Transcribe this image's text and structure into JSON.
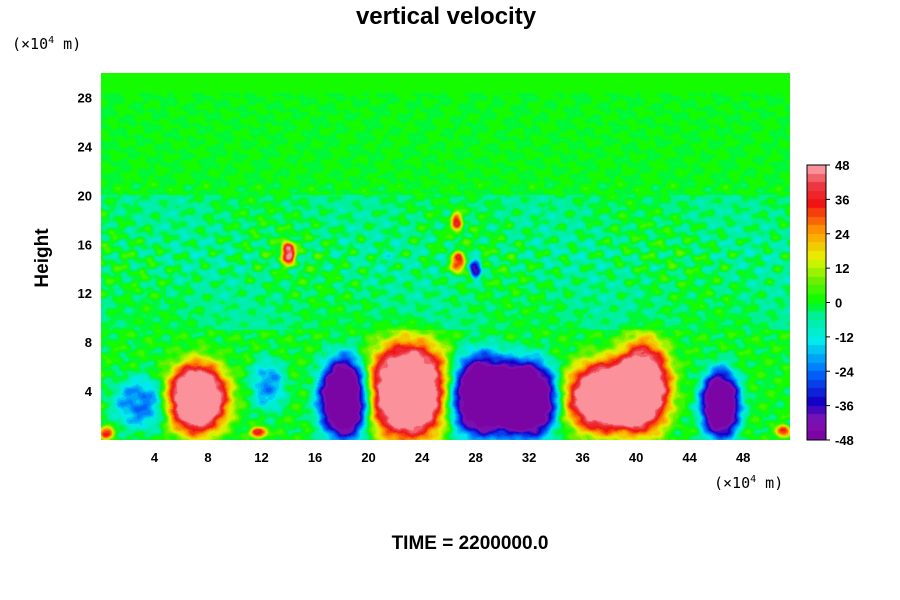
{
  "chart_data": {
    "type": "heatmap",
    "title": "vertical velocity",
    "ylabel": "Height",
    "x_unit": "(×10",
    "x_unit_exp": "4",
    "x_unit_end": " m)",
    "y_unit": "(×10",
    "y_unit_exp": "4",
    "y_unit_end": " m)",
    "xlim": [
      0,
      51.5
    ],
    "ylim": [
      0,
      30
    ],
    "x_ticks": [
      4,
      8,
      12,
      16,
      20,
      24,
      28,
      32,
      36,
      40,
      44,
      48
    ],
    "y_ticks": [
      4,
      8,
      12,
      16,
      20,
      24,
      28
    ],
    "colorbar": {
      "min": -48,
      "max": 48,
      "ticks": [
        48,
        36,
        24,
        12,
        0,
        -12,
        -24,
        -36,
        -48
      ]
    },
    "features": [
      {
        "name": "updraft",
        "x": 7.2,
        "y": 3.4,
        "rx": 2.2,
        "ry": 2.8,
        "value": 52
      },
      {
        "name": "updraft",
        "x": 23.0,
        "y": 4.0,
        "rx": 3.0,
        "ry": 3.8,
        "value": 54
      },
      {
        "name": "updraft",
        "x": 37.5,
        "y": 3.5,
        "rx": 2.6,
        "ry": 2.8,
        "value": 50
      },
      {
        "name": "updraft",
        "x": 40.5,
        "y": 4.3,
        "rx": 2.0,
        "ry": 3.6,
        "value": 48
      },
      {
        "name": "updraft",
        "x": 14.0,
        "y": 15.3,
        "rx": 0.5,
        "ry": 0.9,
        "value": 38
      },
      {
        "name": "updraft",
        "x": 26.7,
        "y": 14.5,
        "rx": 0.5,
        "ry": 0.8,
        "value": 28
      },
      {
        "name": "updraft",
        "x": 26.6,
        "y": 17.8,
        "rx": 0.4,
        "ry": 0.8,
        "value": 26
      },
      {
        "name": "updraft",
        "x": 11.8,
        "y": 0.6,
        "rx": 0.6,
        "ry": 0.4,
        "value": 30
      },
      {
        "name": "updraft",
        "x": 0.4,
        "y": 0.6,
        "rx": 0.5,
        "ry": 0.5,
        "value": 28
      },
      {
        "name": "updraft",
        "x": 51.0,
        "y": 0.7,
        "rx": 0.5,
        "ry": 0.5,
        "value": 26
      },
      {
        "name": "downdraft",
        "x": 18.2,
        "y": 3.4,
        "rx": 1.8,
        "ry": 3.2,
        "value": -52
      },
      {
        "name": "downdraft",
        "x": 28.6,
        "y": 3.6,
        "rx": 2.6,
        "ry": 3.2,
        "value": -52
      },
      {
        "name": "downdraft",
        "x": 32.0,
        "y": 3.3,
        "rx": 2.0,
        "ry": 3.0,
        "value": -50
      },
      {
        "name": "downdraft",
        "x": 46.3,
        "y": 2.9,
        "rx": 1.4,
        "ry": 2.7,
        "value": -48
      },
      {
        "name": "downdraft",
        "x": 3.0,
        "y": 3.0,
        "rx": 2.0,
        "ry": 2.0,
        "value": -18
      },
      {
        "name": "downdraft",
        "x": 12.5,
        "y": 4.5,
        "rx": 1.2,
        "ry": 2.0,
        "value": -16
      },
      {
        "name": "downdraft",
        "x": 28.0,
        "y": 14.0,
        "rx": 0.4,
        "ry": 0.8,
        "value": -30
      }
    ]
  },
  "footer": {
    "time_label": "TIME = 2200000.0"
  }
}
